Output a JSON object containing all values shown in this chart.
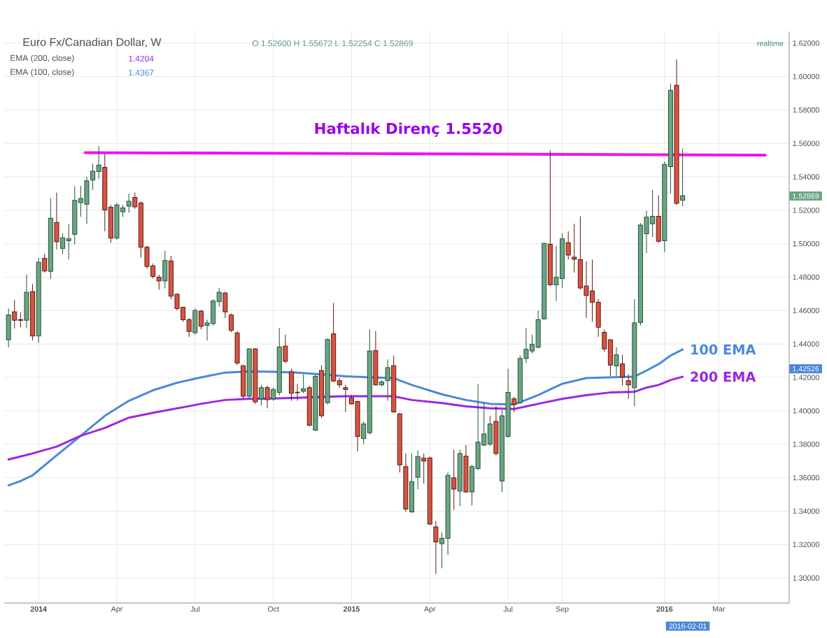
{
  "chart_data": {
    "type": "candlestick",
    "title": "Euro Fx/Canadian Dollar, W",
    "subtitle": "O 1.52600 H 1.55672 L 1.52254 C 1.52869",
    "x": [
      "2013-12-02",
      "2013-12-09",
      "2013-12-16",
      "2013-12-23",
      "2013-12-30",
      "2014-01-06",
      "2014-01-13",
      "2014-01-20",
      "2014-01-27",
      "2014-02-03",
      "2014-02-10",
      "2014-02-17",
      "2014-02-24",
      "2014-03-03",
      "2014-03-10",
      "2014-03-17",
      "2014-03-24",
      "2014-03-31",
      "2014-04-07",
      "2014-04-14",
      "2014-04-21",
      "2014-04-28",
      "2014-05-05",
      "2014-05-12",
      "2014-05-19",
      "2014-05-26",
      "2014-06-02",
      "2014-06-09",
      "2014-06-16",
      "2014-06-23",
      "2014-06-30",
      "2014-07-07",
      "2014-07-14",
      "2014-07-21",
      "2014-07-28",
      "2014-08-04",
      "2014-08-11",
      "2014-08-18",
      "2014-08-25",
      "2014-09-01",
      "2014-09-08",
      "2014-09-15",
      "2014-09-22",
      "2014-09-29",
      "2014-10-06",
      "2014-10-13",
      "2014-10-20",
      "2014-10-27",
      "2014-11-03",
      "2014-11-10",
      "2014-11-17",
      "2014-11-24",
      "2014-12-01",
      "2014-12-08",
      "2014-12-15",
      "2014-12-22",
      "2014-12-29",
      "2015-01-05",
      "2015-01-12",
      "2015-01-19",
      "2015-01-26",
      "2015-02-02",
      "2015-02-09",
      "2015-02-16",
      "2015-02-23",
      "2015-03-02",
      "2015-03-09",
      "2015-03-16",
      "2015-03-23",
      "2015-03-30",
      "2015-04-06",
      "2015-04-13",
      "2015-04-20",
      "2015-04-27",
      "2015-05-04",
      "2015-05-11",
      "2015-05-18",
      "2015-05-25",
      "2015-06-01",
      "2015-06-08",
      "2015-06-15",
      "2015-06-22",
      "2015-06-29",
      "2015-07-06",
      "2015-07-13",
      "2015-07-20",
      "2015-07-27",
      "2015-08-03",
      "2015-08-10",
      "2015-08-17",
      "2015-08-24",
      "2015-08-31",
      "2015-09-07",
      "2015-09-14",
      "2015-09-21",
      "2015-09-28",
      "2015-10-05",
      "2015-10-12",
      "2015-10-19",
      "2015-10-26",
      "2015-11-02",
      "2015-11-09",
      "2015-11-16",
      "2015-11-23",
      "2015-11-30",
      "2015-12-07",
      "2015-12-14",
      "2015-12-21",
      "2015-12-28",
      "2016-01-04",
      "2016-01-11",
      "2016-01-18",
      "2016-01-25"
    ],
    "ohlc": [
      [
        1.4425,
        1.4612,
        1.438,
        1.4574
      ],
      [
        1.4592,
        1.4664,
        1.4493,
        1.4542
      ],
      [
        1.4546,
        1.459,
        1.45,
        1.4541
      ],
      [
        1.4542,
        1.4815,
        1.4495,
        1.4709
      ],
      [
        1.4714,
        1.4759,
        1.4421,
        1.4448
      ],
      [
        1.4448,
        1.4916,
        1.4407,
        1.4889
      ],
      [
        1.4912,
        1.4939,
        1.4827,
        1.4837
      ],
      [
        1.4835,
        1.5272,
        1.479,
        1.5153
      ],
      [
        1.5128,
        1.5306,
        1.4966,
        1.5011
      ],
      [
        1.4972,
        1.5063,
        1.4939,
        1.5036
      ],
      [
        1.5018,
        1.5119,
        1.4905,
        1.5029
      ],
      [
        1.5056,
        1.5344,
        1.4995,
        1.5259
      ],
      [
        1.5246,
        1.5346,
        1.5162,
        1.5271
      ],
      [
        1.5236,
        1.54,
        1.5119,
        1.5376
      ],
      [
        1.538,
        1.5479,
        1.5322,
        1.5434
      ],
      [
        1.5432,
        1.5583,
        1.5389,
        1.547
      ],
      [
        1.5457,
        1.5536,
        1.5074,
        1.5202
      ],
      [
        1.5218,
        1.5232,
        1.5006,
        1.5033
      ],
      [
        1.5033,
        1.5243,
        1.5024,
        1.5232
      ],
      [
        1.5191,
        1.5232,
        1.516,
        1.5214
      ],
      [
        1.5225,
        1.5299,
        1.5186,
        1.5254
      ],
      [
        1.5277,
        1.5306,
        1.5209,
        1.522
      ],
      [
        1.5243,
        1.5254,
        1.4916,
        1.4979
      ],
      [
        1.4979,
        1.4988,
        1.4849,
        1.4864
      ],
      [
        1.4867,
        1.4882,
        1.4792,
        1.4804
      ],
      [
        1.4799,
        1.4815,
        1.4725,
        1.4777
      ],
      [
        1.4777,
        1.4957,
        1.4732,
        1.49
      ],
      [
        1.4898,
        1.4928,
        1.4668,
        1.4686
      ],
      [
        1.4698,
        1.4702,
        1.4601,
        1.4612
      ],
      [
        1.4619,
        1.4623,
        1.4533,
        1.4545
      ],
      [
        1.4545,
        1.4556,
        1.4443,
        1.4475
      ],
      [
        1.4468,
        1.4612,
        1.4455,
        1.4601
      ],
      [
        1.4596,
        1.4605,
        1.4488,
        1.4506
      ],
      [
        1.4511,
        1.4545,
        1.4421,
        1.4527
      ],
      [
        1.4522,
        1.4668,
        1.4511,
        1.4657
      ],
      [
        1.4653,
        1.4736,
        1.4624,
        1.4709
      ],
      [
        1.4705,
        1.4714,
        1.4556,
        1.4592
      ],
      [
        1.4574,
        1.4583,
        1.447,
        1.4482
      ],
      [
        1.4466,
        1.4477,
        1.4275,
        1.4286
      ],
      [
        1.427,
        1.4275,
        1.4072,
        1.4087
      ],
      [
        1.4087,
        1.4376,
        1.4072,
        1.4371
      ],
      [
        1.4371,
        1.4376,
        1.4042,
        1.4054
      ],
      [
        1.4072,
        1.4155,
        1.4031,
        1.4139
      ],
      [
        1.4139,
        1.415,
        1.4015,
        1.4067
      ],
      [
        1.4072,
        1.4139,
        1.406,
        1.4128
      ],
      [
        1.411,
        1.4495,
        1.4094,
        1.4382
      ],
      [
        1.4387,
        1.4455,
        1.4286,
        1.4297
      ],
      [
        1.4234,
        1.4252,
        1.406,
        1.4105
      ],
      [
        1.4112,
        1.4162,
        1.406,
        1.4108
      ],
      [
        1.4117,
        1.4218,
        1.4105,
        1.4132
      ],
      [
        1.4139,
        1.415,
        1.3907,
        1.3914
      ],
      [
        1.3885,
        1.4218,
        1.388,
        1.4207
      ],
      [
        1.4241,
        1.4274,
        1.3959,
        1.397
      ],
      [
        1.4049,
        1.4432,
        1.4038,
        1.4427
      ],
      [
        1.4461,
        1.4646,
        1.4173,
        1.4178
      ],
      [
        1.418,
        1.4196,
        1.4139,
        1.4155
      ],
      [
        1.4139,
        1.4155,
        1.3993,
        1.4128
      ],
      [
        1.4078,
        1.4094,
        1.4038,
        1.4042
      ],
      [
        1.4056,
        1.406,
        1.3757,
        1.3847
      ],
      [
        1.3835,
        1.3937,
        1.3801,
        1.3921
      ],
      [
        1.3869,
        1.4488,
        1.3858,
        1.4358
      ],
      [
        1.436,
        1.4477,
        1.415,
        1.4155
      ],
      [
        1.4155,
        1.4184,
        1.4146,
        1.4173
      ],
      [
        1.418,
        1.4308,
        1.406,
        1.4259
      ],
      [
        1.427,
        1.4331,
        1.3988,
        1.3993
      ],
      [
        1.3982,
        1.3988,
        1.3632,
        1.3677
      ],
      [
        1.3666,
        1.3745,
        1.3396,
        1.3412
      ],
      [
        1.3396,
        1.3745,
        1.3389,
        1.3576
      ],
      [
        1.3603,
        1.3763,
        1.3531,
        1.3727
      ],
      [
        1.3716,
        1.3745,
        1.3565,
        1.37
      ],
      [
        1.3718,
        1.3727,
        1.3317,
        1.3322
      ],
      [
        1.3306,
        1.334,
        1.3024,
        1.3216
      ],
      [
        1.3205,
        1.3272,
        1.3058,
        1.3238
      ],
      [
        1.3238,
        1.3632,
        1.3137,
        1.3614
      ],
      [
        1.3599,
        1.3768,
        1.3407,
        1.3531
      ],
      [
        1.352,
        1.3768,
        1.343,
        1.3745
      ],
      [
        1.3729,
        1.3795,
        1.3508,
        1.3515
      ],
      [
        1.3515,
        1.3678,
        1.3434,
        1.3666
      ],
      [
        1.3655,
        1.4162,
        1.3644,
        1.3813
      ],
      [
        1.3795,
        1.4049,
        1.379,
        1.3862
      ],
      [
        1.3801,
        1.397,
        1.379,
        1.3921
      ],
      [
        1.3937,
        1.4027,
        1.3734,
        1.3745
      ],
      [
        1.3581,
        1.4004,
        1.3515,
        1.397
      ],
      [
        1.3847,
        1.4252,
        1.384,
        1.411
      ],
      [
        1.4072,
        1.4083,
        1.3993,
        1.4038
      ],
      [
        1.4049,
        1.4331,
        1.4042,
        1.4313
      ],
      [
        1.4313,
        1.4495,
        1.4286,
        1.4369
      ],
      [
        1.4358,
        1.4455,
        1.4342,
        1.4398
      ],
      [
        1.438,
        1.4601,
        1.4376,
        1.4545
      ],
      [
        1.4551,
        1.5006,
        1.4545,
        1.5002
      ],
      [
        1.4997,
        1.5558,
        1.4747,
        1.4754
      ],
      [
        1.4754,
        1.4988,
        1.4657,
        1.4799
      ],
      [
        1.4792,
        1.5063,
        1.4736,
        1.5029
      ],
      [
        1.5006,
        1.5074,
        1.4905,
        1.4932
      ],
      [
        1.4919,
        1.5119,
        1.4826,
        1.4907
      ],
      [
        1.4905,
        1.5164,
        1.4725,
        1.4736
      ],
      [
        1.4747,
        1.4894,
        1.4556,
        1.4691
      ],
      [
        1.4718,
        1.4905,
        1.4533,
        1.465
      ],
      [
        1.465,
        1.4668,
        1.4443,
        1.45
      ],
      [
        1.447,
        1.4488,
        1.4353,
        1.4371
      ],
      [
        1.4425,
        1.443,
        1.4207,
        1.4274
      ],
      [
        1.4268,
        1.438,
        1.4207,
        1.4335
      ],
      [
        1.4281,
        1.4335,
        1.415,
        1.4202
      ],
      [
        1.418,
        1.4218,
        1.4072,
        1.4155
      ],
      [
        1.4139,
        1.4669,
        1.4027,
        1.4527
      ],
      [
        1.4529,
        1.5123,
        1.4511,
        1.5112
      ],
      [
        1.506,
        1.5198,
        1.4943,
        1.5159
      ],
      [
        1.5119,
        1.5322,
        1.504,
        1.5164
      ],
      [
        1.5164,
        1.5288,
        1.5006,
        1.5015
      ],
      [
        1.5018,
        1.5491,
        1.495,
        1.5475
      ],
      [
        1.5461,
        1.5957,
        1.5299,
        1.5918
      ],
      [
        1.5948,
        1.6103,
        1.5232,
        1.5241
      ],
      [
        1.526,
        1.55672,
        1.52254,
        1.52869
      ]
    ],
    "series": [
      {
        "type": "line",
        "name": "100 EMA",
        "color": "#4a88dc",
        "x": [
          "2013-12-02",
          "2013-12-16",
          "2013-12-30",
          "2014-01-27",
          "2014-02-24",
          "2014-03-24",
          "2014-04-21",
          "2014-05-19",
          "2014-06-16",
          "2014-07-14",
          "2014-08-11",
          "2014-09-08",
          "2014-10-06",
          "2014-11-03",
          "2014-12-01",
          "2014-12-29",
          "2015-01-26",
          "2015-02-23",
          "2015-03-16",
          "2015-04-20",
          "2015-05-18",
          "2015-06-15",
          "2015-07-13",
          "2015-08-10",
          "2015-09-07",
          "2015-10-05",
          "2015-11-02",
          "2015-11-30",
          "2015-12-14",
          "2015-12-28",
          "2016-01-11",
          "2016-01-25"
        ],
        "values": [
          1.3554,
          1.358,
          1.3614,
          1.3734,
          1.3851,
          1.397,
          1.406,
          1.4123,
          1.4168,
          1.42,
          1.4229,
          1.4236,
          1.4234,
          1.4229,
          1.4218,
          1.4207,
          1.42,
          1.4196,
          1.4155,
          1.4099,
          1.4065,
          1.4042,
          1.4038,
          1.4094,
          1.4162,
          1.4196,
          1.42,
          1.4205,
          1.4241,
          1.4279,
          1.4331,
          1.4367
        ]
      },
      {
        "type": "line",
        "name": "200 EMA",
        "color": "#9c27e0",
        "x": [
          "2013-12-02",
          "2013-12-16",
          "2013-12-30",
          "2014-01-27",
          "2014-02-24",
          "2014-03-24",
          "2014-04-21",
          "2014-05-19",
          "2014-06-16",
          "2014-07-14",
          "2014-08-11",
          "2014-09-08",
          "2014-10-06",
          "2014-11-03",
          "2014-12-01",
          "2014-12-29",
          "2015-01-26",
          "2015-02-23",
          "2015-03-16",
          "2015-04-20",
          "2015-05-18",
          "2015-06-15",
          "2015-07-13",
          "2015-08-10",
          "2015-09-07",
          "2015-10-05",
          "2015-11-02",
          "2015-11-30",
          "2015-12-14",
          "2015-12-28",
          "2016-01-11",
          "2016-01-25"
        ],
        "values": [
          1.3709,
          1.3727,
          1.3745,
          1.3786,
          1.3851,
          1.3898,
          1.3959,
          1.3988,
          1.4015,
          1.4042,
          1.4065,
          1.4072,
          1.4074,
          1.4078,
          1.4083,
          1.4087,
          1.4087,
          1.4087,
          1.4065,
          1.4047,
          1.4027,
          1.4015,
          1.4011,
          1.4042,
          1.4072,
          1.4094,
          1.411,
          1.4114,
          1.4139,
          1.4155,
          1.4184,
          1.4204
        ]
      },
      {
        "type": "line",
        "color": "#f012f0",
        "x": [
          "2014-03-01",
          "2016-04-30"
        ],
        "values": [
          1.5545,
          1.553
        ]
      }
    ],
    "xlim": [
      "2013-11-27",
      "2016-05-28"
    ],
    "ylim": [
      1.285,
      1.627
    ],
    "xticks": [
      {
        "value": "2014-01-06",
        "label": "2014"
      },
      {
        "value": "2014-04-07",
        "label": "Apr"
      },
      {
        "value": "2014-07-07",
        "label": "Jul"
      },
      {
        "value": "2014-10-06",
        "label": "Oct"
      },
      {
        "value": "2015-01-05",
        "label": "2015"
      },
      {
        "value": "2015-04-06",
        "label": "Apr"
      },
      {
        "value": "2015-07-06",
        "label": "Jul"
      },
      {
        "value": "2015-09-07",
        "label": "Sep"
      },
      {
        "value": "2016-01-04",
        "label": "2016"
      },
      {
        "value": "2016-03-07",
        "label": "Mar"
      }
    ],
    "yticks": [
      {
        "value": 1.3,
        "label": "1.30000"
      },
      {
        "value": 1.32,
        "label": "1.32000"
      },
      {
        "value": 1.34,
        "label": "1.34000"
      },
      {
        "value": 1.36,
        "label": "1.36000"
      },
      {
        "value": 1.38,
        "label": "1.38000"
      },
      {
        "value": 1.4,
        "label": "1.40000"
      },
      {
        "value": 1.42,
        "label": "1.42000"
      },
      {
        "value": 1.44,
        "label": "1.44000"
      },
      {
        "value": 1.46,
        "label": "1.46000"
      },
      {
        "value": 1.48,
        "label": "1.48000"
      },
      {
        "value": 1.5,
        "label": "1.50000"
      },
      {
        "value": 1.52,
        "label": "1.52000"
      },
      {
        "value": 1.54,
        "label": "1.54000"
      },
      {
        "value": 1.56,
        "label": "1.56000"
      },
      {
        "value": 1.58,
        "label": "1.58000"
      },
      {
        "value": 1.6,
        "label": "1.60000"
      },
      {
        "value": 1.62,
        "label": "1.62000"
      }
    ],
    "grid": true,
    "annotations": [
      "EMA (200, close)",
      "1.4204",
      "EMA (100, close)",
      "1.4367",
      "realtime",
      "1.52869",
      "1.42526",
      "2016-02-01",
      {
        "text": "Haftalık Direnç 1.5520",
        "x": "2015-03-12",
        "y": 1.5538
      }
    ]
  }
}
